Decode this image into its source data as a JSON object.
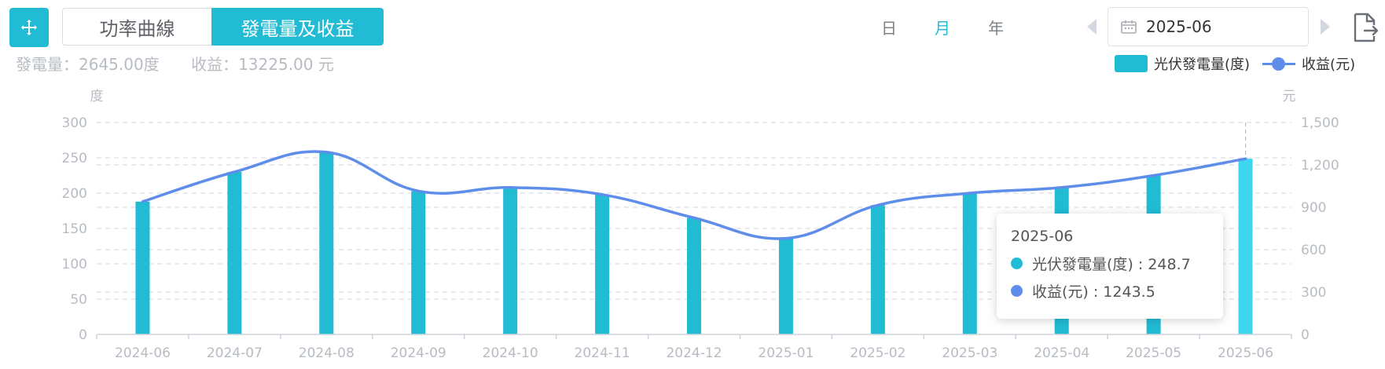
{
  "toolbar": {
    "mode_tabs": [
      {
        "label": "功率曲線",
        "active": false
      },
      {
        "label": "發電量及收益",
        "active": true
      }
    ],
    "periods": [
      {
        "label": "日",
        "active": false
      },
      {
        "label": "月",
        "active": true
      },
      {
        "label": "年",
        "active": false
      }
    ],
    "date_value": "2025-06"
  },
  "summary": {
    "generation": "發電量：2645.00度",
    "revenue": "收益：13225.00 元"
  },
  "colors": {
    "accent": "#21bcd4",
    "bar": "#21bcd4",
    "bar_highlight": "#3fd6ef",
    "line": "#5e8eea"
  },
  "chart_data": {
    "type": "bar",
    "categories": [
      "2024-06",
      "2024-07",
      "2024-08",
      "2024-09",
      "2024-10",
      "2024-11",
      "2024-12",
      "2025-01",
      "2025-02",
      "2025-03",
      "2025-04",
      "2025-05",
      "2025-06"
    ],
    "series": [
      {
        "name": "光伏發電量(度)",
        "type": "bar",
        "axis": "left",
        "values": [
          188,
          230,
          258,
          203,
          208,
          198,
          165,
          136,
          183,
          200,
          208,
          225,
          248.7
        ]
      },
      {
        "name": "收益(元)",
        "type": "line",
        "axis": "right",
        "smooth": true,
        "values": [
          940,
          1150,
          1290,
          1015,
          1040,
          990,
          825,
          680,
          915,
          1000,
          1040,
          1125,
          1243.5
        ]
      }
    ],
    "ylabel": "度",
    "ylabel_right": "元",
    "ylim": [
      0,
      300
    ],
    "ylim_right": [
      0,
      1500
    ],
    "yticks": [
      "0",
      "50",
      "100",
      "150",
      "200",
      "250",
      "300"
    ],
    "yticks_right": [
      "0",
      "300",
      "600",
      "900",
      "1,200",
      "1,500"
    ],
    "grid": true,
    "legend_position": "top-right",
    "tooltip": {
      "title": "2025-06",
      "rows": [
        {
          "label": "光伏發電量(度) : 248.7"
        },
        {
          "label": "收益(元) : 1243.5"
        }
      ]
    }
  }
}
